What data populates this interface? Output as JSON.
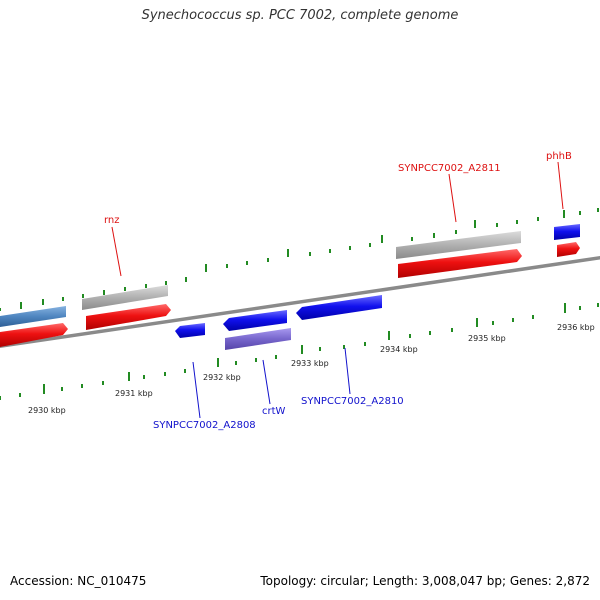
{
  "title": "Synechococcus sp. PCC 7002, complete genome",
  "footer": {
    "accession": "Accession: NC_010475",
    "topology": "Topology: circular; Length: 3,008,047 bp; Genes: 2,872"
  },
  "colors": {
    "forward_gene": "#ee1111",
    "reverse_gene": "#1111ee",
    "forward_label": "#dd1111",
    "reverse_label": "#1111cc",
    "grey_feature": "#b0b0b0",
    "steelblue_feature": "#4f86c0",
    "purple_feature": "#7766cc",
    "backbone": "#8a8a8a",
    "tick": "#228b22"
  },
  "map": {
    "kbp_labels": [
      "2930 kbp",
      "2931 kbp",
      "2932 kbp",
      "2933 kbp",
      "2934 kbp",
      "2935 kbp",
      "2936 kbp"
    ]
  },
  "gene_labels": {
    "rnz": "rnz",
    "a2811": "SYNPCC7002_A2811",
    "phhb": "phhB",
    "a2808": "SYNPCC7002_A2808",
    "crtw": "crtW",
    "a2810": "SYNPCC7002_A2810"
  }
}
